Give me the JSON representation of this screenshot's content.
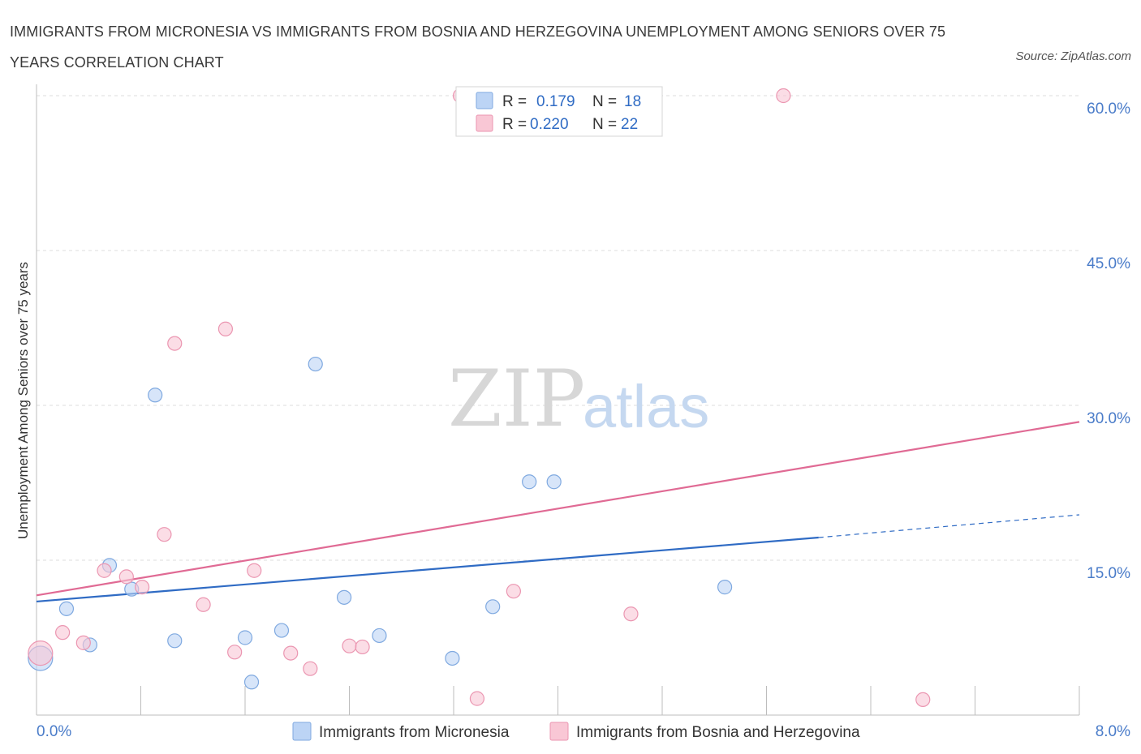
{
  "title": "IMMIGRANTS FROM MICRONESIA VS IMMIGRANTS FROM BOSNIA AND HERZEGOVINA UNEMPLOYMENT AMONG SENIORS OVER 75 YEARS CORRELATION CHART",
  "source": "Source: ZipAtlas.com",
  "watermark": {
    "zip": "ZIP",
    "atlas": "atlas"
  },
  "colors": {
    "blue_fill": "#bcd4f5",
    "blue_stroke": "#7fa9e0",
    "blue_line": "#2f6bc4",
    "pink_fill": "#f9c7d5",
    "pink_stroke": "#eb96b1",
    "pink_line": "#e06a94",
    "grid": "#dcdcdc",
    "tick_text": "#4a7cc9"
  },
  "legend": {
    "r_label": "R =",
    "n_label": "N =",
    "series": [
      {
        "r": "0.179",
        "n": "18"
      },
      {
        "r": "0.220",
        "n": "22"
      }
    ]
  },
  "chart_data": {
    "type": "scatter",
    "title": "IMMIGRANTS FROM MICRONESIA VS IMMIGRANTS FROM BOSNIA AND HERZEGOVINA UNEMPLOYMENT AMONG SENIORS OVER 75 YEARS CORRELATION CHART",
    "xlabel": "",
    "ylabel": "Unemployment Among Seniors over 75 years",
    "xlim": [
      0,
      8
    ],
    "ylim": [
      0,
      60
    ],
    "x_tick_labels": [
      "0.0%",
      "8.0%"
    ],
    "y_ticks": [
      15,
      30,
      45,
      60
    ],
    "y_tick_labels": [
      "15.0%",
      "30.0%",
      "45.0%",
      "60.0%"
    ],
    "grid": true,
    "legend_position": "top-center",
    "series": [
      {
        "name": "Immigrants from Micronesia",
        "color": "blue",
        "points": [
          {
            "x": 0.03,
            "y": 5.5,
            "size": "large"
          },
          {
            "x": 0.23,
            "y": 10.3
          },
          {
            "x": 0.41,
            "y": 6.8
          },
          {
            "x": 0.56,
            "y": 14.5
          },
          {
            "x": 0.73,
            "y": 12.2
          },
          {
            "x": 0.91,
            "y": 31.0
          },
          {
            "x": 1.06,
            "y": 7.2
          },
          {
            "x": 1.6,
            "y": 7.5
          },
          {
            "x": 1.65,
            "y": 3.2
          },
          {
            "x": 1.88,
            "y": 8.2
          },
          {
            "x": 2.14,
            "y": 34.0
          },
          {
            "x": 2.36,
            "y": 11.4
          },
          {
            "x": 2.63,
            "y": 7.7
          },
          {
            "x": 3.19,
            "y": 5.5
          },
          {
            "x": 3.5,
            "y": 10.5
          },
          {
            "x": 3.78,
            "y": 22.6
          },
          {
            "x": 3.97,
            "y": 22.6
          },
          {
            "x": 5.28,
            "y": 12.4
          }
        ],
        "trend": {
          "x0": 0,
          "y0": 11.0,
          "x1": 6.0,
          "y1": 17.2,
          "dashed_to_x": 8.0,
          "dashed_to_y": 19.4
        }
      },
      {
        "name": "Immigrants from Bosnia and Herzegovina",
        "color": "pink",
        "points": [
          {
            "x": 0.03,
            "y": 6.0,
            "size": "large"
          },
          {
            "x": 0.2,
            "y": 8.0
          },
          {
            "x": 0.36,
            "y": 7.0
          },
          {
            "x": 0.52,
            "y": 14.0
          },
          {
            "x": 0.69,
            "y": 13.4
          },
          {
            "x": 0.81,
            "y": 12.4
          },
          {
            "x": 0.98,
            "y": 17.5
          },
          {
            "x": 1.06,
            "y": 36.0
          },
          {
            "x": 1.28,
            "y": 10.7
          },
          {
            "x": 1.45,
            "y": 37.4
          },
          {
            "x": 1.52,
            "y": 6.1
          },
          {
            "x": 1.67,
            "y": 14.0
          },
          {
            "x": 1.95,
            "y": 6.0
          },
          {
            "x": 2.1,
            "y": 4.5
          },
          {
            "x": 2.4,
            "y": 6.7
          },
          {
            "x": 2.5,
            "y": 6.6
          },
          {
            "x": 3.25,
            "y": 60.0
          },
          {
            "x": 3.38,
            "y": 1.6
          },
          {
            "x": 3.66,
            "y": 12.0
          },
          {
            "x": 4.56,
            "y": 9.8
          },
          {
            "x": 5.73,
            "y": 60.0
          },
          {
            "x": 6.8,
            "y": 1.5
          }
        ],
        "trend": {
          "x0": 0,
          "y0": 11.6,
          "x1": 8.0,
          "y1": 28.4
        }
      }
    ]
  }
}
